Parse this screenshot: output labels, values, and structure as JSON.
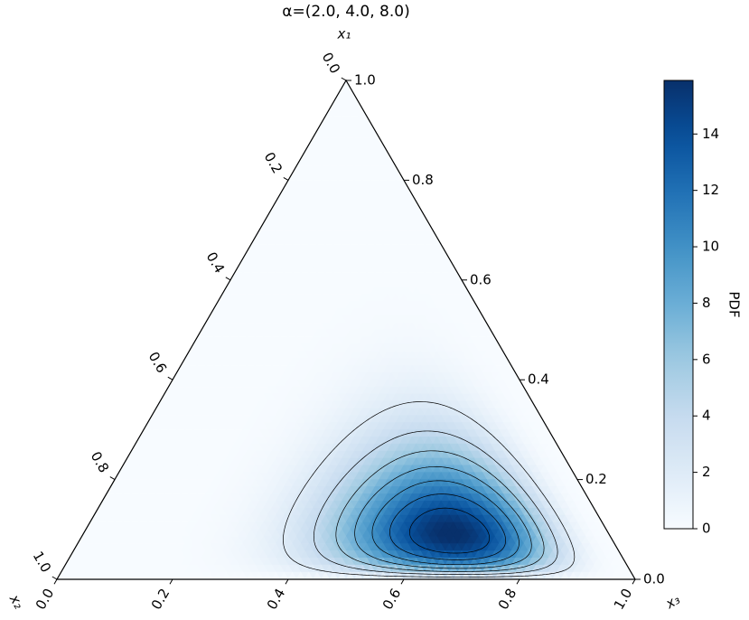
{
  "chart_data": {
    "type": "ternary",
    "title": "α=(2.0, 4.0, 8.0)",
    "alpha": [
      2,
      4,
      8
    ],
    "axes": [
      {
        "label": "x₁",
        "ticks": [
          {
            "value": 0,
            "label": "0.0"
          },
          0.2,
          0.4,
          0.6,
          0.8,
          {
            "value": 1,
            "label": "1.0"
          }
        ]
      },
      {
        "label": "x₂",
        "ticks": [
          {
            "value": 0,
            "label": "0.0"
          },
          0.2,
          0.4,
          0.6,
          0.8,
          {
            "value": 1,
            "label": "1.0"
          }
        ]
      },
      {
        "label": "x₃",
        "ticks": [
          {
            "value": 0,
            "label": "0.0"
          },
          0.2,
          0.4,
          0.6,
          0.8,
          {
            "value": 1,
            "label": "1.0"
          }
        ]
      }
    ],
    "contour_levels": [
      2,
      4,
      6,
      8,
      10,
      12,
      14
    ],
    "colorbar": {
      "label": "PDF",
      "clim": [
        0,
        15.9
      ],
      "ticks": [
        0,
        2,
        4,
        6,
        8,
        10,
        12,
        14
      ],
      "colormap": "Blues"
    }
  }
}
